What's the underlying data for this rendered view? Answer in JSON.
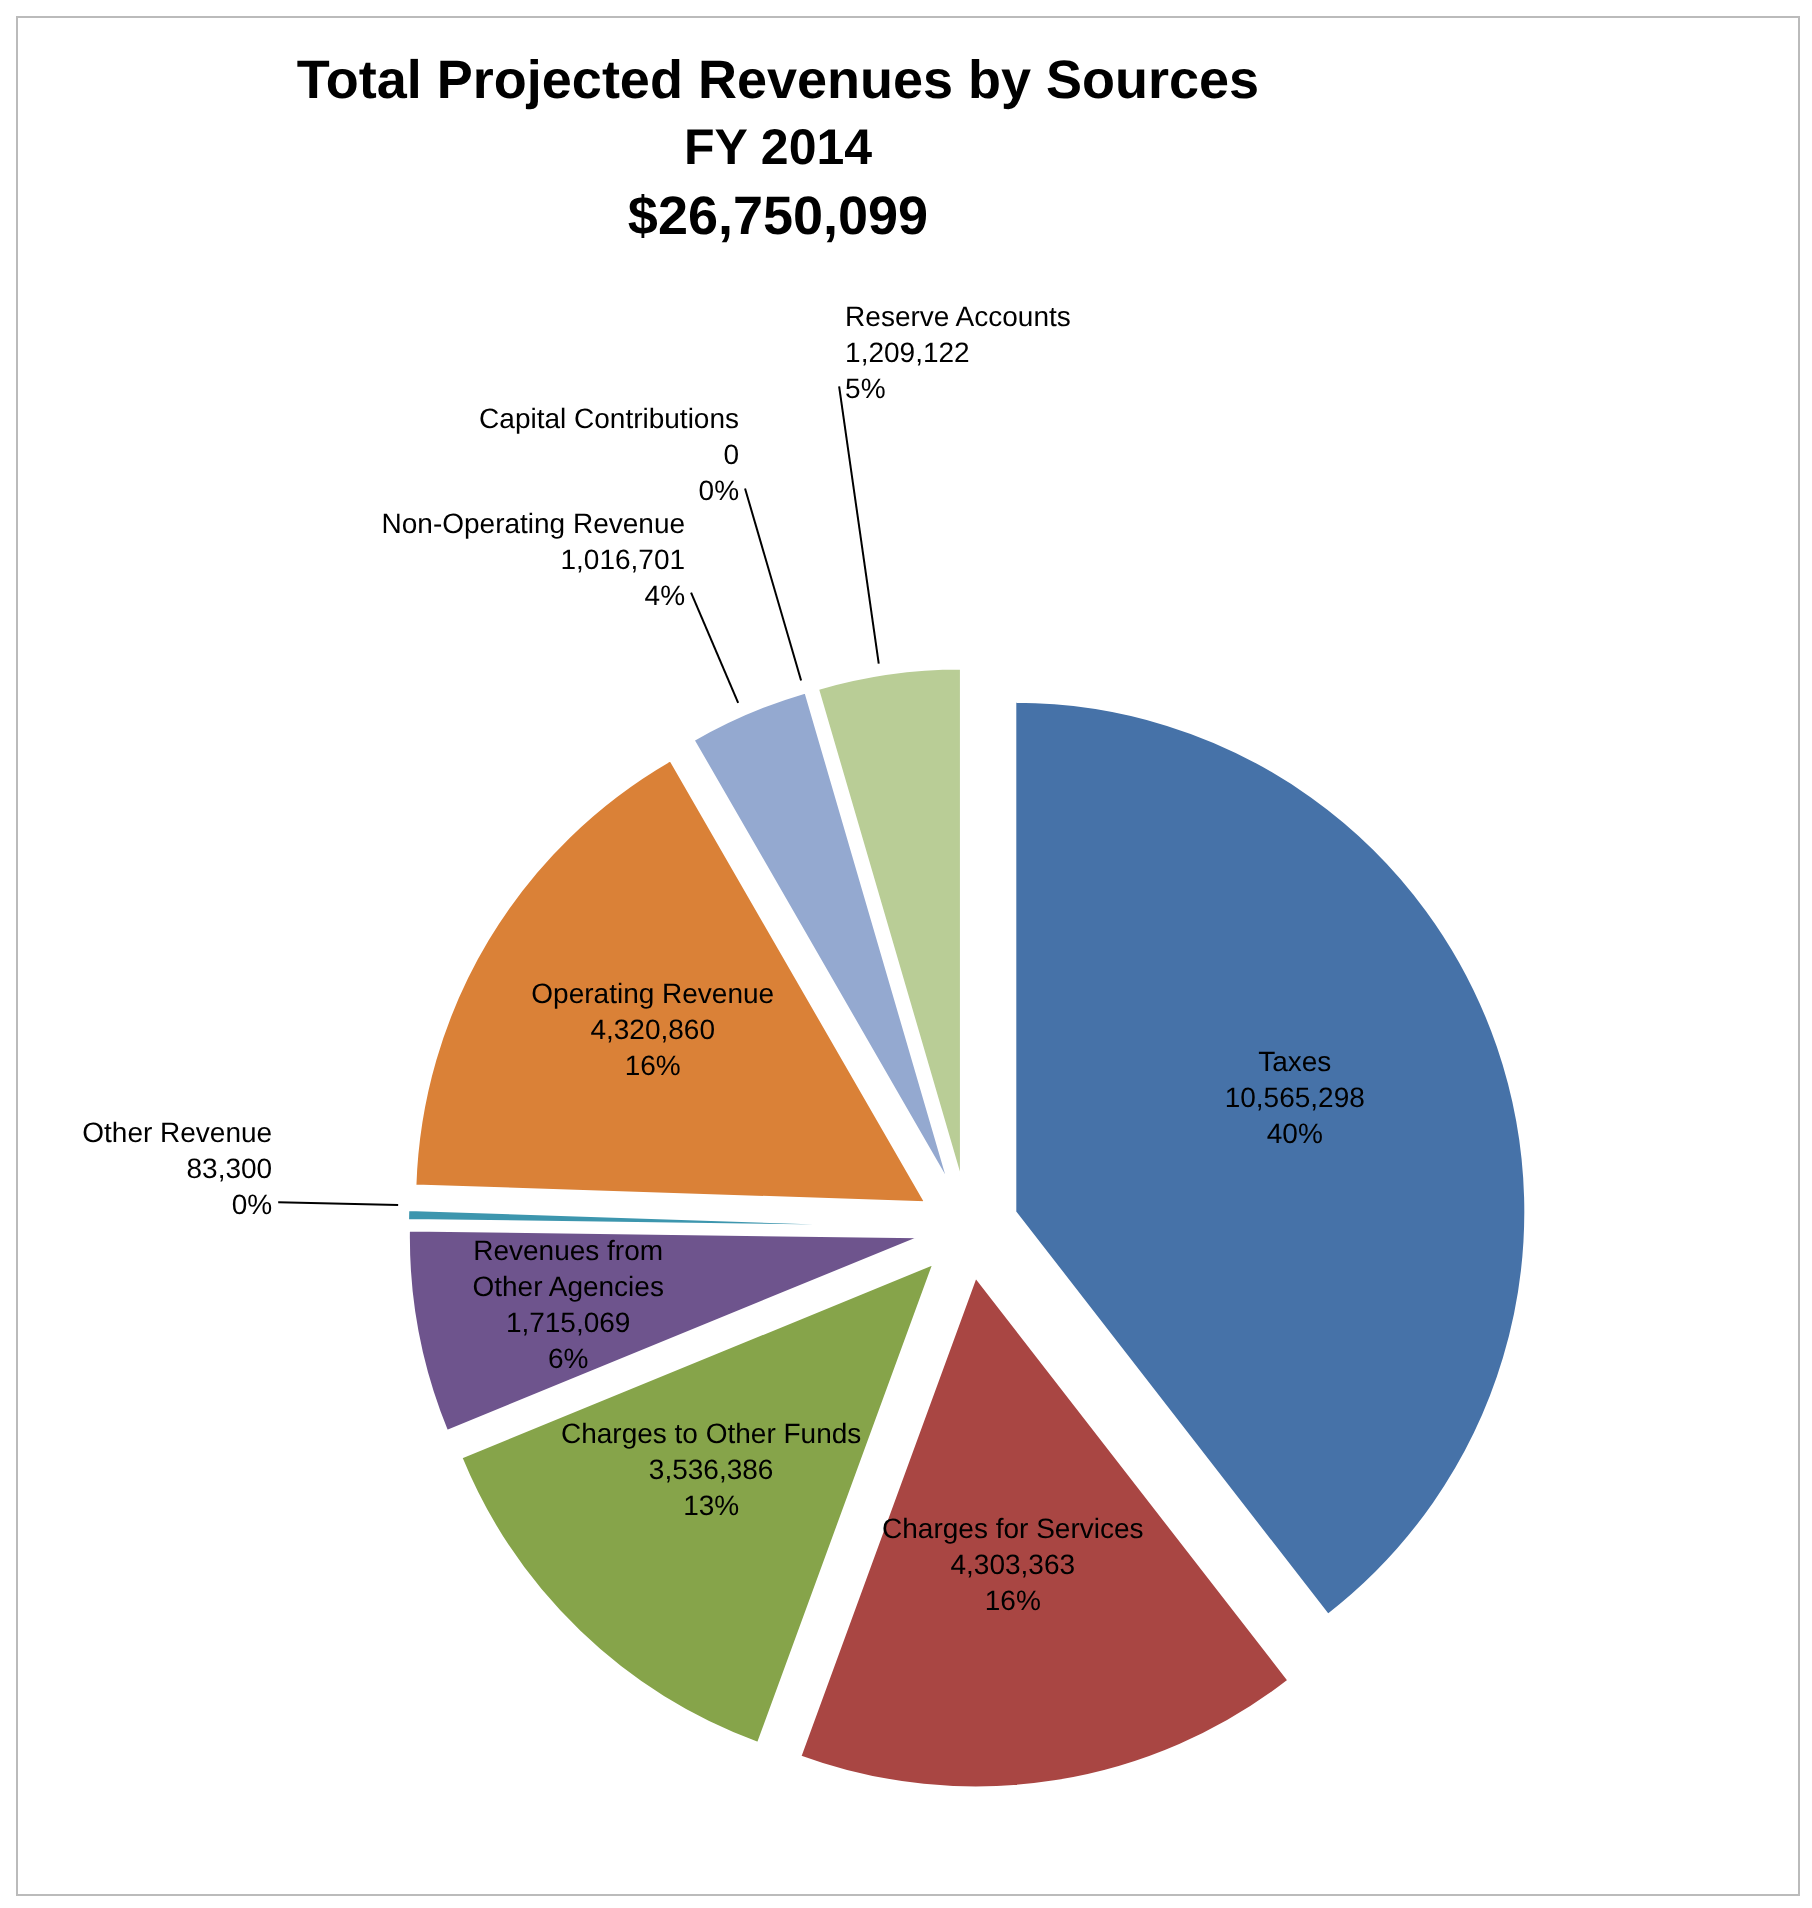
{
  "chart_data": {
    "type": "pie",
    "title": "Total Projected Revenues by Sources",
    "subtitle": "FY 2014",
    "annotations": [
      "$26,750,099"
    ],
    "categories": [
      "Taxes",
      "Charges for Services",
      "Charges to Other Funds",
      "Revenues from Other Agencies",
      "Other Revenue",
      "Operating Revenue",
      "Non-Operating Revenue",
      "Capital Contributions",
      "Reserve Accounts"
    ],
    "values": [
      10565298,
      4303363,
      3536386,
      1715069,
      83300,
      4320860,
      1016701,
      0,
      1209122
    ],
    "value_labels": [
      "10,565,298\n40%",
      "4,303,363\n16%",
      "3,536,386\n13%",
      "1,715,069\n6%",
      "83,300\n0%",
      "4,320,860\n16%",
      "1,016,701\n4%",
      "0\n0%",
      "1,209,122\n5%"
    ],
    "colors": [
      "#4672a8",
      "#a94643",
      "#86a44a",
      "#6e548d",
      "#3d96ae",
      "#da8137",
      "#94a9d0",
      "#d09392",
      "#b9cd96"
    ],
    "legend": false
  }
}
